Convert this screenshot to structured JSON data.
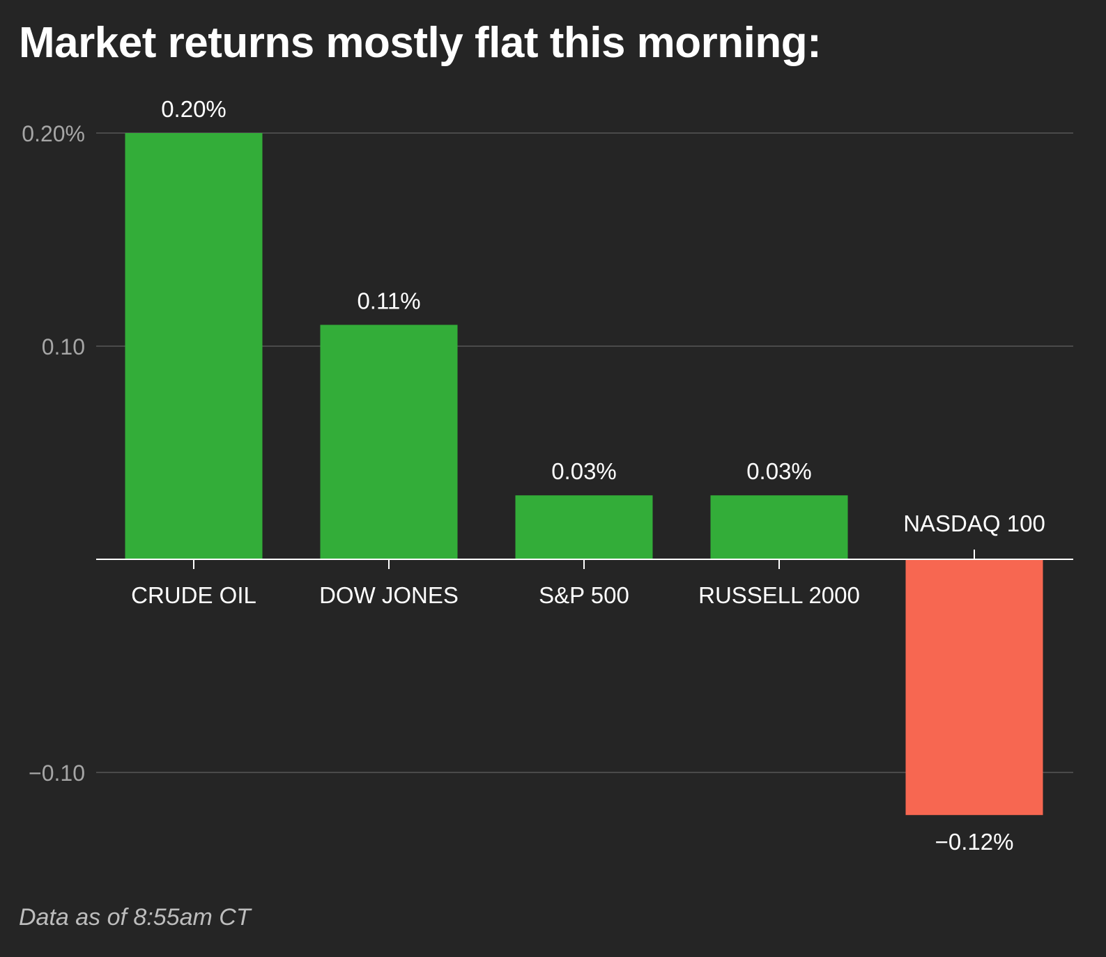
{
  "title": "Market returns mostly flat this morning:",
  "footnote": "Data as of 8:55am CT",
  "colors": {
    "background": "#252525",
    "positive": "#33ad39",
    "negative": "#f76751",
    "grid": "#4a4a4a",
    "axis": "#ffffff",
    "tick_label": "#a6a6a6",
    "text": "#ffffff"
  },
  "chart_data": {
    "type": "bar",
    "categories": [
      "CRUDE OIL",
      "DOW JONES",
      "S&P 500",
      "RUSSELL 2000",
      "NASDAQ 100"
    ],
    "values": [
      0.2,
      0.11,
      0.03,
      0.03,
      -0.12
    ],
    "value_labels": [
      "0.20%",
      "0.11%",
      "0.03%",
      "0.03%",
      "−0.12%"
    ],
    "y_ticks": [
      0.2,
      0.1,
      -0.1
    ],
    "y_tick_labels": [
      "0.20%",
      "0.10",
      "−0.10"
    ],
    "ylim": [
      -0.13,
      0.2
    ],
    "grid": true,
    "title": "Market returns mostly flat this morning:",
    "xlabel": "",
    "ylabel": ""
  }
}
